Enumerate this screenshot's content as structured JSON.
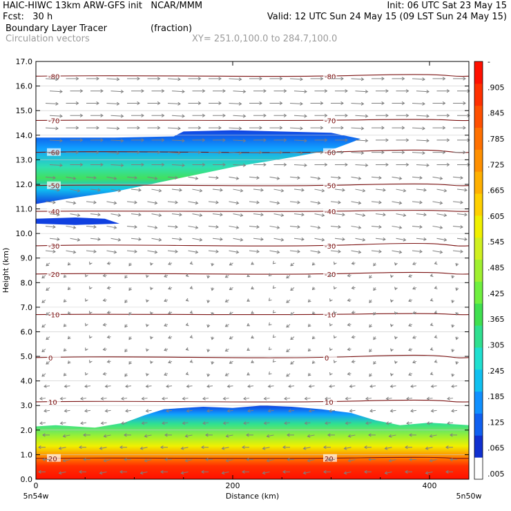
{
  "header": {
    "line1_left": "HAIC-HIWC 13km ARW-GFS init   NCAR/MMM",
    "line1_right": "Init: 06 UTC Sat 23 May 15",
    "line2_left": "Fcst:   30 h",
    "line2_right": "Valid: 12 UTC Sun 24 May 15 (09 LST Sun 24 May 15)",
    "line3_left": "Boundary Layer Tracer",
    "line3_mid": "(fraction)",
    "line4_left": "Circulation vectors",
    "line4_mid": "XY= 251.0,100.0 to 284.7,100.0"
  },
  "colors": {
    "contour": "#7a1010",
    "vector": "#7f7f7f",
    "colorbar": [
      "#ffffff",
      "#1030d0",
      "#1060f0",
      "#1090ff",
      "#10c0f0",
      "#20e0d0",
      "#30e090",
      "#40e050",
      "#70f040",
      "#a0f030",
      "#d0f020",
      "#f0f000",
      "#ffd000",
      "#ffb000",
      "#ff9000",
      "#ff7000",
      "#ff5000",
      "#ff3000",
      "#ff1000"
    ]
  },
  "chart_data": {
    "type": "heatmap",
    "title": "Boundary Layer Tracer",
    "units": "(fraction)",
    "xlabel": "Distance (km)",
    "ylabel": "Height (km)",
    "xlim": [
      0,
      440
    ],
    "ylim": [
      0,
      17
    ],
    "x_ticks": [
      "0",
      "200",
      "400"
    ],
    "x_tick_values": [
      0,
      200,
      400
    ],
    "x_endpoints": [
      "5n54w",
      "5n50w"
    ],
    "y_ticks": [
      "0.0",
      "1.0",
      "2.0",
      "3.0",
      "4.0",
      "5.0",
      "6.0",
      "7.0",
      "8.0",
      "9.0",
      "10.0",
      "11.0",
      "12.0",
      "13.0",
      "14.0",
      "15.0",
      "16.0",
      "17.0"
    ],
    "colorbar_labels": [
      ".005",
      ".065",
      ".125",
      ".185",
      ".245",
      ".305",
      ".365",
      ".425",
      ".485",
      ".545",
      ".605",
      ".665",
      ".725",
      ".785",
      ".845",
      ".905",
      "-"
    ],
    "contours": [
      {
        "label": "20",
        "height_km": 0.85
      },
      {
        "label": "10",
        "height_km": 3.15
      },
      {
        "label": "0",
        "height_km": 4.95
      },
      {
        "label": "-10",
        "height_km": 6.7
      },
      {
        "label": "-20",
        "height_km": 8.35
      },
      {
        "label": "-30",
        "height_km": 9.5
      },
      {
        "label": "-40",
        "height_km": 10.9
      },
      {
        "label": "-50",
        "height_km": 11.95
      },
      {
        "label": "-60",
        "height_km": 13.3
      },
      {
        "label": "-70",
        "height_km": 14.6
      },
      {
        "label": "-80",
        "height_km": 16.4
      }
    ]
  }
}
